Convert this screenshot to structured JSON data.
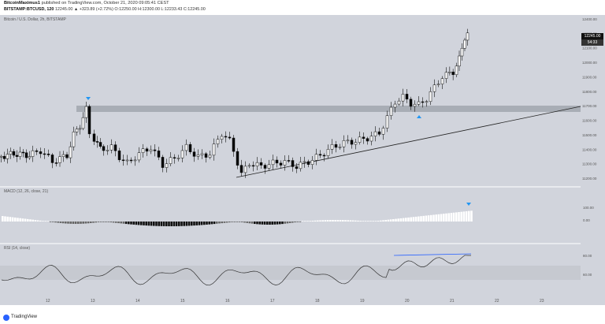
{
  "header": {
    "author": "BitcoinMaximus1",
    "published_text": "published on TradingView.com, October 21, 2020 09:05:41 CEST",
    "symbol": "BITSTAMP:BTCUSD, 120",
    "last_change": "12245.00 ▲ +323.89 (+2.72%)",
    "ohlc": "O:12250.00 H:12300.00 L:12233.43 C:12245.00"
  },
  "price_pane": {
    "legend": "Bitcoin / U.S. Dollar, 2h, BITSTAMP",
    "price_ticks": [
      "12400.00",
      "12300.00",
      "12100.00",
      "12000.00",
      "11900.00",
      "11800.00",
      "11700.00",
      "11600.00",
      "11500.00",
      "11400.00",
      "11300.00",
      "11200.00"
    ],
    "last_price_label": "12245.00",
    "countdown_label": "54:33",
    "colors": {
      "up": "#ffffff",
      "down": "#000000",
      "zone": "#9aa0a8",
      "marker": "#2196f3"
    }
  },
  "macd_pane": {
    "legend": "MACD (12, 26, close, 21)",
    "ticks": [
      "100.00",
      "0.00"
    ]
  },
  "rsi_pane": {
    "legend": "RSI (14, close)",
    "ticks": [
      "80.00",
      "60.00"
    ]
  },
  "time_axis": {
    "labels": [
      "12",
      "13",
      "14",
      "15",
      "16",
      "17",
      "18",
      "19",
      "20",
      "21",
      "22",
      "23"
    ]
  },
  "footer": {
    "brand": "TradingView"
  }
}
